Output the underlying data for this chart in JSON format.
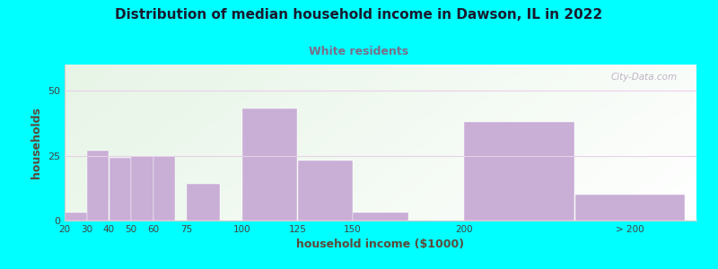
{
  "title": "Distribution of median household income in Dawson, IL in 2022",
  "subtitle": "White residents",
  "xlabel": "household income ($1000)",
  "ylabel": "households",
  "background_outer": "#00FFFF",
  "bar_color": "#c9aed6",
  "bar_edge_color": "#c9aed6",
  "title_color": "#1a1a2e",
  "subtitle_color": "#7a6e8a",
  "axis_label_color": "#5c4a3a",
  "tick_color": "#444444",
  "values": [
    3,
    27,
    24,
    25,
    25,
    14,
    43,
    23,
    3,
    38,
    10
  ],
  "bar_widths": [
    10,
    10,
    10,
    10,
    10,
    15,
    25,
    25,
    25,
    50,
    50
  ],
  "bar_lefts": [
    20,
    30,
    40,
    50,
    60,
    75,
    100,
    125,
    150,
    200,
    250
  ],
  "xlim": [
    20,
    305
  ],
  "ylim": [
    0,
    60
  ],
  "yticks": [
    0,
    25,
    50
  ],
  "xtick_positions": [
    20,
    30,
    40,
    50,
    60,
    75,
    100,
    125,
    150,
    200,
    275
  ],
  "xtick_labels": [
    "20",
    "30",
    "40",
    "50",
    "60",
    "75",
    "100",
    "125",
    "150",
    "200",
    "> 200"
  ],
  "watermark": "City-Data.com",
  "grid_color": "#e8d0e8",
  "bg_grad_left": "#d4edda",
  "bg_grad_right": "#f0f0f8"
}
